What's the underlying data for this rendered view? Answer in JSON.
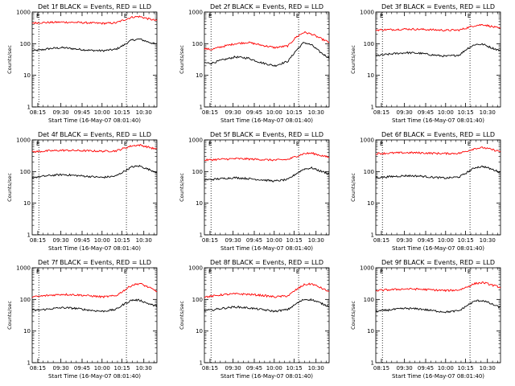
{
  "chart_data": [
    {
      "type": "line",
      "title": "Det 1f BLACK = Events, RED = LLD",
      "xlabel": "Start Time (16-May-07 08:01:40)",
      "ylabel": "Counts/sec",
      "yscale": "log",
      "ylim": [
        1,
        1000
      ],
      "ytick_labels": [
        "1",
        "10",
        "100",
        "1000"
      ],
      "xtick_labels": [
        "08:15",
        "09:30",
        "09:45",
        "10:00",
        "10:15",
        "10:30"
      ],
      "x_time_range": [
        "09:07",
        "10:41"
      ],
      "markers": [
        {
          "label": "E",
          "time": "09:12"
        },
        {
          "label": "E",
          "time": "10:18"
        }
      ],
      "series": [
        {
          "color": "#000000",
          "x": [
            "09:07",
            "09:12",
            "09:20",
            "09:30",
            "09:40",
            "09:50",
            "10:00",
            "10:10",
            "10:16",
            "10:22",
            "10:28",
            "10:34",
            "10:41"
          ],
          "values": [
            60,
            62,
            70,
            75,
            68,
            62,
            60,
            66,
            90,
            130,
            140,
            115,
            95
          ]
        },
        {
          "color": "#ff0000",
          "x": [
            "09:07",
            "09:12",
            "09:20",
            "09:30",
            "09:40",
            "09:50",
            "10:00",
            "10:10",
            "10:16",
            "10:22",
            "10:28",
            "10:34",
            "10:41"
          ],
          "values": [
            450,
            460,
            470,
            480,
            470,
            455,
            440,
            455,
            560,
            690,
            720,
            620,
            530
          ]
        }
      ]
    },
    {
      "type": "line",
      "title": "Det 2f BLACK = Events, RED = LLD",
      "xlabel": "Start Time (16-May-07 08:01:40)",
      "ylabel": "Counts/sec",
      "yscale": "log",
      "ylim": [
        1,
        1000
      ],
      "ytick_labels": [
        "1",
        "10",
        "100",
        "1000"
      ],
      "xtick_labels": [
        "08:15",
        "09:30",
        "09:45",
        "10:00",
        "10:15",
        "10:30"
      ],
      "x_time_range": [
        "09:07",
        "10:41"
      ],
      "markers": [
        {
          "label": "E",
          "time": "09:12"
        },
        {
          "label": "E",
          "time": "10:18"
        }
      ],
      "series": [
        {
          "color": "#000000",
          "x": [
            "09:07",
            "09:12",
            "09:20",
            "09:30",
            "09:40",
            "09:50",
            "10:00",
            "10:10",
            "10:16",
            "10:22",
            "10:28",
            "10:34",
            "10:41"
          ],
          "values": [
            25,
            24,
            30,
            38,
            35,
            25,
            20,
            28,
            60,
            110,
            90,
            55,
            35
          ]
        },
        {
          "color": "#ff0000",
          "x": [
            "09:07",
            "09:12",
            "09:20",
            "09:30",
            "09:40",
            "09:50",
            "10:00",
            "10:10",
            "10:16",
            "10:22",
            "10:28",
            "10:34",
            "10:41"
          ],
          "values": [
            70,
            65,
            80,
            100,
            110,
            90,
            75,
            85,
            160,
            230,
            200,
            150,
            110
          ]
        }
      ]
    },
    {
      "type": "line",
      "title": "Det 3f BLACK = Events, RED = LLD",
      "xlabel": "Start Time (16-May-07 08:01:40)",
      "ylabel": "Counts/sec",
      "yscale": "log",
      "ylim": [
        1,
        1000
      ],
      "ytick_labels": [
        "1",
        "10",
        "100",
        "1000"
      ],
      "xtick_labels": [
        "08:15",
        "09:30",
        "09:45",
        "10:00",
        "10:15",
        "10:30"
      ],
      "x_time_range": [
        "09:07",
        "10:41"
      ],
      "markers": [
        {
          "label": "E",
          "time": "09:12"
        },
        {
          "label": "E",
          "time": "10:18"
        }
      ],
      "series": [
        {
          "color": "#000000",
          "x": [
            "09:07",
            "09:12",
            "09:20",
            "09:30",
            "09:40",
            "09:50",
            "10:00",
            "10:10",
            "10:16",
            "10:22",
            "10:28",
            "10:34",
            "10:41"
          ],
          "values": [
            42,
            44,
            48,
            52,
            50,
            44,
            40,
            44,
            70,
            95,
            95,
            75,
            60
          ]
        },
        {
          "color": "#ff0000",
          "x": [
            "09:07",
            "09:12",
            "09:20",
            "09:30",
            "09:40",
            "09:50",
            "10:00",
            "10:10",
            "10:16",
            "10:22",
            "10:28",
            "10:34",
            "10:41"
          ],
          "values": [
            270,
            275,
            280,
            290,
            285,
            275,
            265,
            270,
            320,
            380,
            400,
            350,
            300
          ]
        }
      ]
    },
    {
      "type": "line",
      "title": "Det 4f BLACK = Events, RED = LLD",
      "xlabel": "Start Time (16-May-07 08:01:40)",
      "ylabel": "Counts/sec",
      "yscale": "log",
      "ylim": [
        1,
        1000
      ],
      "ytick_labels": [
        "1",
        "10",
        "100",
        "1000"
      ],
      "xtick_labels": [
        "08:15",
        "09:30",
        "09:45",
        "10:00",
        "10:15",
        "10:30"
      ],
      "x_time_range": [
        "09:07",
        "10:41"
      ],
      "markers": [
        {
          "label": "E",
          "time": "09:12"
        },
        {
          "label": "E",
          "time": "10:18"
        }
      ],
      "series": [
        {
          "color": "#000000",
          "x": [
            "09:07",
            "09:12",
            "09:20",
            "09:30",
            "09:40",
            "09:50",
            "10:00",
            "10:10",
            "10:16",
            "10:22",
            "10:28",
            "10:34",
            "10:41"
          ],
          "values": [
            65,
            68,
            75,
            80,
            75,
            70,
            65,
            72,
            100,
            140,
            150,
            120,
            95
          ]
        },
        {
          "color": "#ff0000",
          "x": [
            "09:07",
            "09:12",
            "09:20",
            "09:30",
            "09:40",
            "09:50",
            "10:00",
            "10:10",
            "10:16",
            "10:22",
            "10:28",
            "10:34",
            "10:41"
          ],
          "values": [
            420,
            430,
            450,
            470,
            460,
            450,
            440,
            450,
            540,
            650,
            690,
            600,
            500
          ]
        }
      ]
    },
    {
      "type": "line",
      "title": "Det 5f BLACK = Events, RED = LLD",
      "xlabel": "Start Time (16-May-07 08:01:40)",
      "ylabel": "Counts/sec",
      "yscale": "log",
      "ylim": [
        1,
        1000
      ],
      "ytick_labels": [
        "1",
        "10",
        "100",
        "1000"
      ],
      "xtick_labels": [
        "08:15",
        "09:30",
        "09:45",
        "10:00",
        "10:15",
        "10:30"
      ],
      "x_time_range": [
        "09:07",
        "10:41"
      ],
      "markers": [
        {
          "label": "E",
          "time": "09:12"
        },
        {
          "label": "E",
          "time": "10:18"
        }
      ],
      "series": [
        {
          "color": "#000000",
          "x": [
            "09:07",
            "09:12",
            "09:20",
            "09:30",
            "09:40",
            "09:50",
            "10:00",
            "10:10",
            "10:16",
            "10:22",
            "10:28",
            "10:34",
            "10:41"
          ],
          "values": [
            55,
            56,
            60,
            64,
            60,
            55,
            50,
            56,
            85,
            120,
            130,
            105,
            85
          ]
        },
        {
          "color": "#ff0000",
          "x": [
            "09:07",
            "09:12",
            "09:20",
            "09:30",
            "09:40",
            "09:50",
            "10:00",
            "10:10",
            "10:16",
            "10:22",
            "10:28",
            "10:34",
            "10:41"
          ],
          "values": [
            230,
            235,
            245,
            255,
            250,
            240,
            230,
            240,
            300,
            370,
            380,
            330,
            280
          ]
        }
      ]
    },
    {
      "type": "line",
      "title": "Det 6f BLACK = Events, RED = LLD",
      "xlabel": "Start Time (16-May-07 08:01:40)",
      "ylabel": "Counts/sec",
      "yscale": "log",
      "ylim": [
        1,
        1000
      ],
      "ytick_labels": [
        "1",
        "10",
        "100",
        "1000"
      ],
      "xtick_labels": [
        "08:15",
        "09:30",
        "09:45",
        "10:00",
        "10:15",
        "10:30"
      ],
      "x_time_range": [
        "09:07",
        "10:41"
      ],
      "markers": [
        {
          "label": "E",
          "time": "09:12"
        },
        {
          "label": "E",
          "time": "10:18"
        }
      ],
      "series": [
        {
          "color": "#000000",
          "x": [
            "09:07",
            "09:12",
            "09:20",
            "09:30",
            "09:40",
            "09:50",
            "10:00",
            "10:10",
            "10:16",
            "10:22",
            "10:28",
            "10:34",
            "10:41"
          ],
          "values": [
            65,
            66,
            70,
            74,
            72,
            66,
            62,
            68,
            95,
            135,
            145,
            120,
            95
          ]
        },
        {
          "color": "#ff0000",
          "x": [
            "09:07",
            "09:12",
            "09:20",
            "09:30",
            "09:40",
            "09:50",
            "10:00",
            "10:10",
            "10:16",
            "10:22",
            "10:28",
            "10:34",
            "10:41"
          ],
          "values": [
            370,
            375,
            385,
            395,
            390,
            380,
            370,
            380,
            450,
            540,
            570,
            500,
            430
          ]
        }
      ]
    },
    {
      "type": "line",
      "title": "Det 7f BLACK = Events, RED = LLD",
      "xlabel": "Start Time (16-May-07 08:01:40)",
      "ylabel": "Counts/sec",
      "yscale": "log",
      "ylim": [
        1,
        1000
      ],
      "ytick_labels": [
        "1",
        "10",
        "100",
        "1000"
      ],
      "xtick_labels": [
        "08:15",
        "09:30",
        "09:45",
        "10:00",
        "10:15",
        "10:30"
      ],
      "x_time_range": [
        "09:07",
        "10:41"
      ],
      "markers": [
        {
          "label": "E",
          "time": "09:12"
        },
        {
          "label": "E",
          "time": "10:18"
        }
      ],
      "series": [
        {
          "color": "#000000",
          "x": [
            "09:07",
            "09:12",
            "09:20",
            "09:30",
            "09:40",
            "09:50",
            "10:00",
            "10:10",
            "10:16",
            "10:22",
            "10:28",
            "10:34",
            "10:41"
          ],
          "values": [
            45,
            46,
            50,
            55,
            52,
            46,
            42,
            48,
            70,
            95,
            95,
            75,
            60
          ]
        },
        {
          "color": "#ff0000",
          "x": [
            "09:07",
            "09:12",
            "09:20",
            "09:30",
            "09:40",
            "09:50",
            "10:00",
            "10:10",
            "10:16",
            "10:22",
            "10:28",
            "10:34",
            "10:41"
          ],
          "values": [
            120,
            125,
            135,
            145,
            140,
            130,
            120,
            130,
            190,
            280,
            320,
            250,
            180
          ]
        }
      ]
    },
    {
      "type": "line",
      "title": "Det 8f BLACK = Events, RED = LLD",
      "xlabel": "Start Time (16-May-07 08:01:40)",
      "ylabel": "Counts/sec",
      "yscale": "log",
      "ylim": [
        1,
        1000
      ],
      "ytick_labels": [
        "1",
        "10",
        "100",
        "1000"
      ],
      "xtick_labels": [
        "08:15",
        "09:30",
        "09:45",
        "10:00",
        "10:15",
        "10:30"
      ],
      "x_time_range": [
        "09:07",
        "10:41"
      ],
      "markers": [
        {
          "label": "E",
          "time": "09:12"
        },
        {
          "label": "E",
          "time": "10:18"
        }
      ],
      "series": [
        {
          "color": "#000000",
          "x": [
            "09:07",
            "09:12",
            "09:20",
            "09:30",
            "09:40",
            "09:50",
            "10:00",
            "10:10",
            "10:16",
            "10:22",
            "10:28",
            "10:34",
            "10:41"
          ],
          "values": [
            45,
            46,
            52,
            58,
            54,
            48,
            42,
            48,
            72,
            100,
            98,
            78,
            60
          ]
        },
        {
          "color": "#ff0000",
          "x": [
            "09:07",
            "09:12",
            "09:20",
            "09:30",
            "09:40",
            "09:50",
            "10:00",
            "10:10",
            "10:16",
            "10:22",
            "10:28",
            "10:34",
            "10:41"
          ],
          "values": [
            120,
            125,
            140,
            150,
            145,
            135,
            120,
            130,
            200,
            290,
            310,
            240,
            175
          ]
        }
      ]
    },
    {
      "type": "line",
      "title": "Det 9f BLACK = Events, RED = LLD",
      "xlabel": "Start Time (16-May-07 08:01:40)",
      "ylabel": "Counts/sec",
      "yscale": "log",
      "ylim": [
        1,
        1000
      ],
      "ytick_labels": [
        "1",
        "10",
        "100",
        "1000"
      ],
      "xtick_labels": [
        "08:15",
        "09:30",
        "09:45",
        "10:00",
        "10:15",
        "10:30"
      ],
      "x_time_range": [
        "09:07",
        "10:41"
      ],
      "markers": [
        {
          "label": "E",
          "time": "09:12"
        },
        {
          "label": "E",
          "time": "10:18"
        }
      ],
      "series": [
        {
          "color": "#000000",
          "x": [
            "09:07",
            "09:12",
            "09:20",
            "09:30",
            "09:40",
            "09:50",
            "10:00",
            "10:10",
            "10:16",
            "10:22",
            "10:28",
            "10:34",
            "10:41"
          ],
          "values": [
            42,
            44,
            48,
            52,
            50,
            44,
            40,
            44,
            65,
            90,
            92,
            72,
            55
          ]
        },
        {
          "color": "#ff0000",
          "x": [
            "09:07",
            "09:12",
            "09:20",
            "09:30",
            "09:40",
            "09:50",
            "10:00",
            "10:10",
            "10:16",
            "10:22",
            "10:28",
            "10:34",
            "10:41"
          ],
          "values": [
            190,
            195,
            205,
            215,
            210,
            200,
            190,
            200,
            250,
            320,
            340,
            290,
            240
          ]
        }
      ]
    }
  ]
}
